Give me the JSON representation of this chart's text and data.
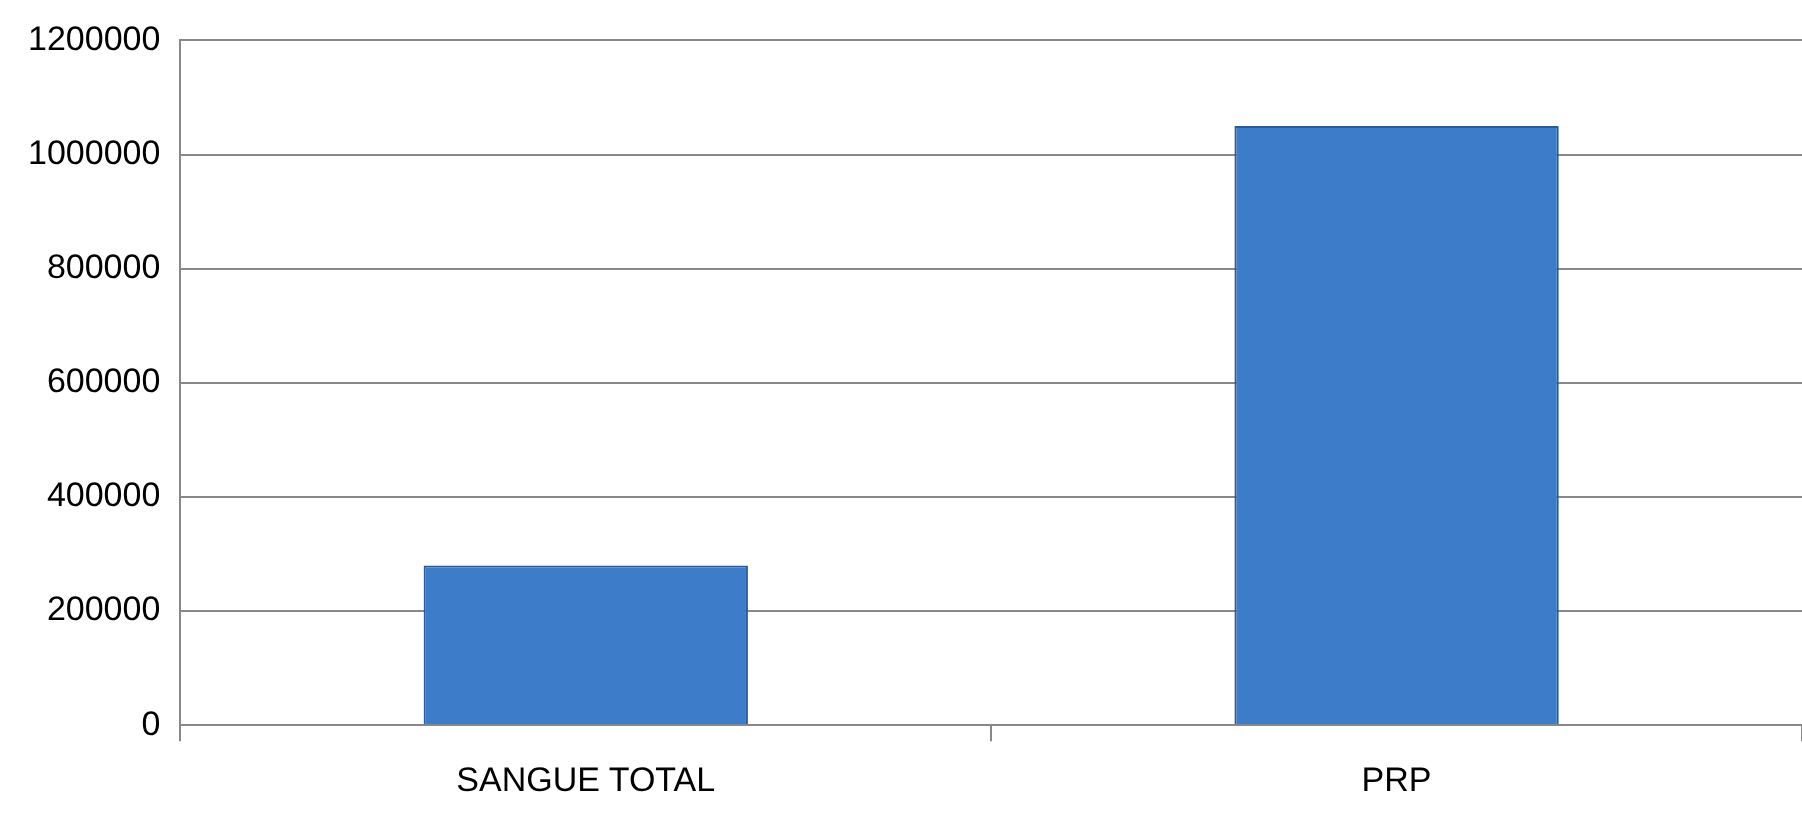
{
  "chart_data": {
    "type": "bar",
    "categories": [
      "SANGUE TOTAL",
      "PRP"
    ],
    "values": [
      280000,
      1050000
    ],
    "color": "#3d7cc9",
    "ylim": [
      0,
      1200000
    ],
    "yticks": [
      0,
      200000,
      400000,
      600000,
      800000,
      1000000,
      1200000
    ],
    "grid": "y",
    "legend": false
  }
}
